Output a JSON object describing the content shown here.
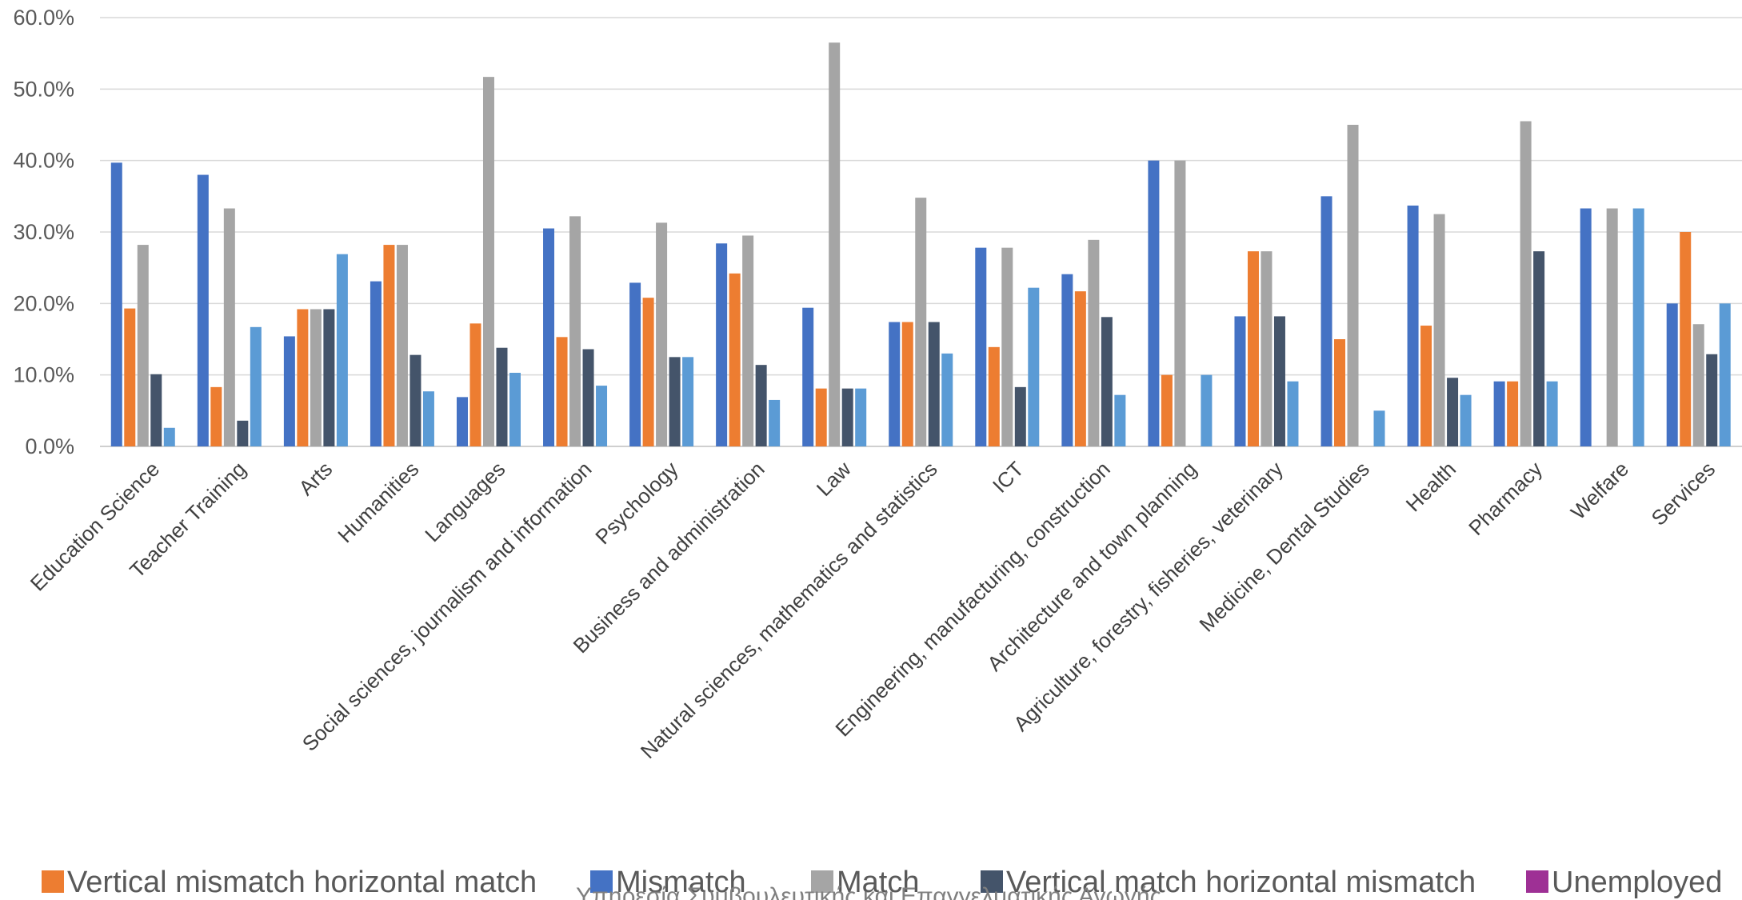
{
  "chart_data": {
    "type": "bar",
    "title": "",
    "xlabel": "",
    "ylabel": "",
    "ylim": [
      0,
      60
    ],
    "y_tick_labels": [
      "0.0%",
      "10.0%",
      "20.0%",
      "30.0%",
      "40.0%",
      "50.0%",
      "60.0%"
    ],
    "grid": true,
    "legend_position": "bottom",
    "categories": [
      "Education Science",
      "Teacher Training",
      "Arts",
      "Humanities",
      "Languages",
      "Social sciences, journalism and information",
      "Psychology",
      "Business and administration",
      "Law",
      "Natural sciences, mathematics and statistics",
      "ICT",
      "Engineering, manufacturing, construction",
      "Architecture and town planning",
      "Agriculture, forestry, fisheries, veterinary",
      "Medicine, Dental Studies",
      "Health",
      "Pharmacy",
      "Welfare",
      "Services"
    ],
    "series": [
      {
        "name": "Mismatch",
        "color": "#4472c4",
        "values": [
          39.7,
          38.0,
          15.4,
          23.1,
          6.9,
          30.5,
          22.9,
          28.4,
          19.4,
          17.4,
          27.8,
          24.1,
          40.0,
          18.2,
          35.0,
          33.7,
          9.1,
          33.3,
          20.0
        ]
      },
      {
        "name": "Vertical mismatch horizontal match",
        "color": "#ed7d31",
        "values": [
          19.3,
          8.3,
          19.2,
          28.2,
          17.2,
          15.3,
          20.8,
          24.2,
          8.1,
          17.4,
          13.9,
          21.7,
          10.0,
          27.3,
          15.0,
          16.9,
          9.1,
          0,
          30.0
        ]
      },
      {
        "name": "Match",
        "color": "#a5a5a5",
        "values": [
          28.2,
          33.3,
          19.2,
          28.2,
          51.7,
          32.2,
          31.3,
          29.5,
          56.5,
          34.8,
          27.8,
          28.9,
          40.0,
          27.3,
          45.0,
          32.5,
          45.5,
          33.3,
          17.1
        ]
      },
      {
        "name": "Vertical match horizontal mismatch",
        "color": "#44546a",
        "values": [
          10.1,
          3.6,
          19.2,
          12.8,
          13.8,
          13.6,
          12.5,
          11.4,
          8.1,
          17.4,
          8.3,
          18.1,
          0,
          18.2,
          0,
          9.6,
          27.3,
          0,
          12.9
        ]
      },
      {
        "name": "Unemployed",
        "color": "#5b9bd5",
        "values": [
          2.6,
          16.7,
          26.9,
          7.7,
          10.3,
          8.5,
          12.5,
          6.5,
          8.1,
          13.0,
          22.2,
          7.2,
          10.0,
          9.1,
          5.0,
          7.2,
          9.1,
          33.3,
          20.0
        ]
      }
    ],
    "legend": [
      {
        "name": "Vertical mismatch horizontal match",
        "color": "#ed7d31"
      },
      {
        "name": "Mismatch",
        "color": "#4472c4"
      },
      {
        "name": "Match",
        "color": "#a5a5a5"
      },
      {
        "name": "Vertical match horizontal mismatch",
        "color": "#44546a"
      },
      {
        "name": "Unemployed",
        "color": "#9e3095"
      }
    ]
  },
  "footer": {
    "text": "Υπηρεσία Συμβουλευτικής και Επαγγελματικής Αγωγής"
  }
}
